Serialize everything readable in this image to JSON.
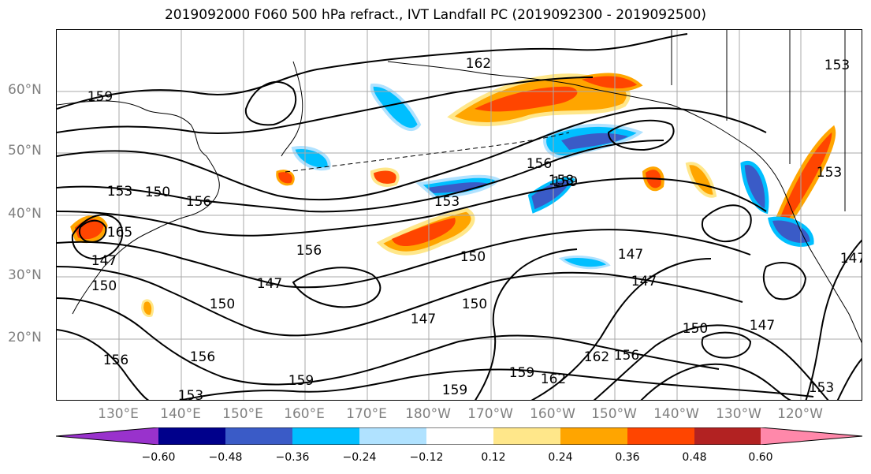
{
  "title": "2019092000 F060 500 hPa refract., IVT Landfall PC (2019092300 - 2019092500)",
  "lat_labels": [
    "60°N",
    "50°N",
    "40°N",
    "30°N",
    "20°N"
  ],
  "lon_labels": [
    "130°E",
    "140°E",
    "150°E",
    "160°E",
    "170°E",
    "180°W",
    "170°W",
    "160°W",
    "150°W",
    "140°W",
    "130°W",
    "120°W"
  ],
  "contour_labels": [
    "159",
    "162",
    "150",
    "156",
    "153",
    "165",
    "147",
    "150",
    "156",
    "153",
    "158",
    "147",
    "150",
    "147",
    "147",
    "150",
    "159",
    "162",
    "156",
    "159",
    "162",
    "150",
    "147",
    "147",
    "153",
    "153",
    "156",
    "159",
    "150",
    "153",
    "147",
    "159",
    "156",
    "153",
    "156"
  ],
  "colorbar": {
    "ticks": [
      "−0.60",
      "−0.48",
      "−0.36",
      "−0.24",
      "−0.12",
      "0.12",
      "0.24",
      "0.36",
      "0.48",
      "0.60"
    ],
    "colors": [
      "#9932CC",
      "#00008B",
      "#3A5BC7",
      "#00BFFF",
      "#B0E2FF",
      "#FFFFFF",
      "#FFE78A",
      "#FFA500",
      "#FF4500",
      "#B22222",
      "#FF88AA"
    ]
  }
}
